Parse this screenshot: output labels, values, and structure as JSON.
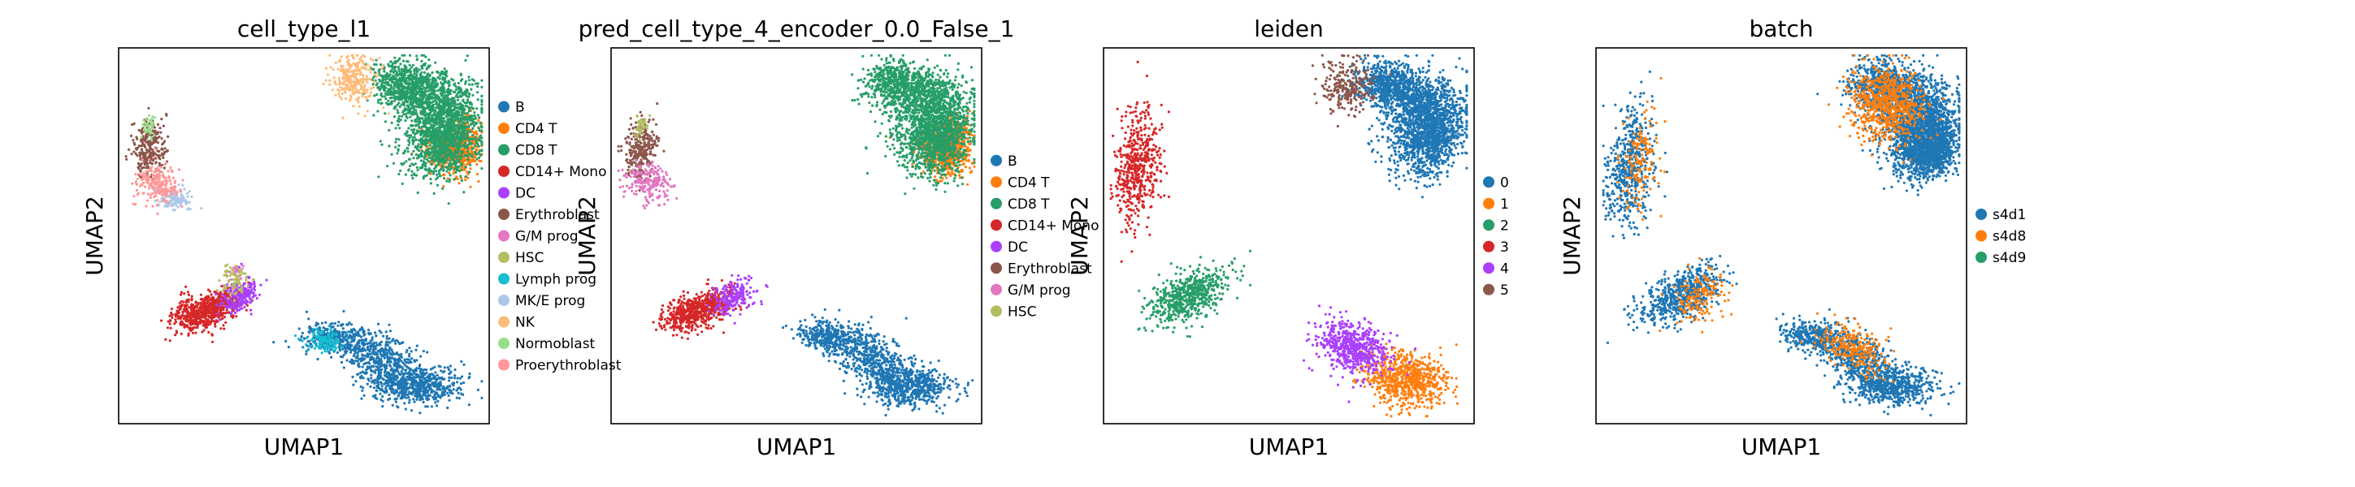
{
  "chart_data": [
    {
      "type": "scatter",
      "title": "cell_type_l1",
      "xlabel": "UMAP1",
      "ylabel": "UMAP2",
      "grid": false,
      "legend_placement": "right",
      "categories": [
        {
          "name": "B",
          "color": "#1f77b4"
        },
        {
          "name": "CD4 T",
          "color": "#ff7f0e"
        },
        {
          "name": "CD8 T",
          "color": "#279e68"
        },
        {
          "name": "CD14+ Mono",
          "color": "#d62728"
        },
        {
          "name": "DC",
          "color": "#aa40fc"
        },
        {
          "name": "Erythroblast",
          "color": "#8c564b"
        },
        {
          "name": "G/M prog",
          "color": "#e377c2"
        },
        {
          "name": "HSC",
          "color": "#b5bd61"
        },
        {
          "name": "Lymph prog",
          "color": "#17becf"
        },
        {
          "name": "MK/E prog",
          "color": "#aec7e8"
        },
        {
          "name": "NK",
          "color": "#ffbb78"
        },
        {
          "name": "Normoblast",
          "color": "#98df8a"
        },
        {
          "name": "Proerythroblast",
          "color": "#ff9896"
        }
      ]
    },
    {
      "type": "scatter",
      "title": "pred_cell_type_4_encoder_0.0_False_1",
      "xlabel": "UMAP1",
      "ylabel": "UMAP2",
      "grid": false,
      "legend_placement": "right",
      "categories": [
        {
          "name": "B",
          "color": "#1f77b4"
        },
        {
          "name": "CD4 T",
          "color": "#ff7f0e"
        },
        {
          "name": "CD8 T",
          "color": "#279e68"
        },
        {
          "name": "CD14+ Mono",
          "color": "#d62728"
        },
        {
          "name": "DC",
          "color": "#aa40fc"
        },
        {
          "name": "Erythroblast",
          "color": "#8c564b"
        },
        {
          "name": "G/M prog",
          "color": "#e377c2"
        },
        {
          "name": "HSC",
          "color": "#b5bd61"
        }
      ]
    },
    {
      "type": "scatter",
      "title": "leiden",
      "xlabel": "UMAP1",
      "ylabel": "UMAP2",
      "grid": false,
      "legend_placement": "right",
      "categories": [
        {
          "name": "0",
          "color": "#1f77b4"
        },
        {
          "name": "1",
          "color": "#ff7f0e"
        },
        {
          "name": "2",
          "color": "#279e68"
        },
        {
          "name": "3",
          "color": "#d62728"
        },
        {
          "name": "4",
          "color": "#aa40fc"
        },
        {
          "name": "5",
          "color": "#8c564b"
        }
      ]
    },
    {
      "type": "scatter",
      "title": "batch",
      "xlabel": "UMAP1",
      "ylabel": "UMAP2",
      "grid": false,
      "legend_placement": "right",
      "categories": [
        {
          "name": "s4d1",
          "color": "#1f77b4"
        },
        {
          "name": "s4d8",
          "color": "#ff7f0e"
        },
        {
          "name": "s4d9",
          "color": "#279e68"
        }
      ]
    }
  ]
}
